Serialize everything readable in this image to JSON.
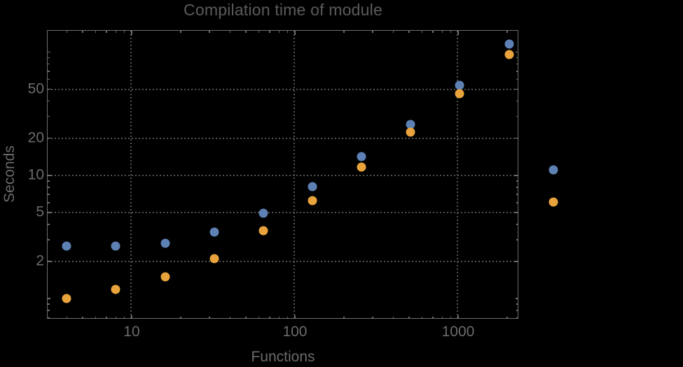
{
  "page": {
    "background": "#000000"
  },
  "chart_data": {
    "type": "scatter",
    "title": "Compilation time of module",
    "xlabel": "Functions",
    "ylabel": "Seconds",
    "xscale": "log",
    "yscale": "log",
    "xlim": [
      3.07,
      2340
    ],
    "ylim": [
      0.685,
      149
    ],
    "grid": {
      "on": true,
      "style": "dotted",
      "color": "#525252",
      "x_values": [
        10,
        100,
        1000
      ],
      "y_values": [
        2,
        5,
        10,
        20,
        50
      ]
    },
    "x_ticks": [
      {
        "value": 10,
        "label": "10"
      },
      {
        "value": 100,
        "label": "100"
      },
      {
        "value": 1000,
        "label": "1000"
      }
    ],
    "y_ticks": [
      {
        "value": 2,
        "label": "2"
      },
      {
        "value": 5,
        "label": "5"
      },
      {
        "value": 10,
        "label": "10"
      },
      {
        "value": 20,
        "label": "20"
      },
      {
        "value": 50,
        "label": "50"
      }
    ],
    "categories_note": "x values are module function counts (powers of two)",
    "x": [
      4,
      8,
      16,
      32,
      64,
      128,
      256,
      512,
      1024,
      2048
    ],
    "series": [
      {
        "name": "blue-series",
        "color": "#5E81B5",
        "y": [
          2.65,
          2.65,
          2.8,
          3.45,
          4.9,
          8.1,
          14.1,
          26,
          54,
          116
        ]
      },
      {
        "name": "orange-series",
        "color": "#E8A33C",
        "y": [
          1.0,
          1.18,
          1.5,
          2.1,
          3.55,
          6.2,
          11.7,
          22.4,
          46,
          95
        ]
      }
    ],
    "legend": {
      "position": "right-outside",
      "labels_visible": false,
      "markers": [
        {
          "color": "#5E81B5"
        },
        {
          "color": "#E8A33C"
        }
      ]
    }
  },
  "frame": {
    "color": "#6e6e6e",
    "text_color": "#6b6b6b",
    "title_color": "#5b5b5b"
  }
}
